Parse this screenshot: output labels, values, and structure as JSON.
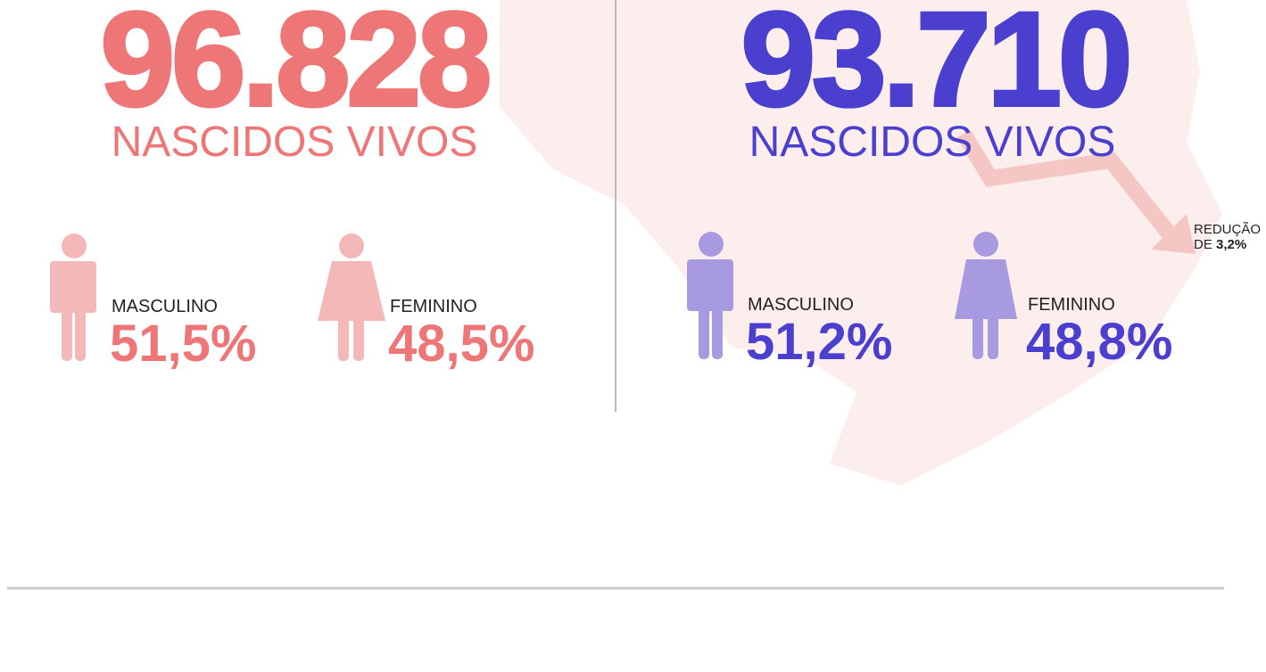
{
  "panels": [
    {
      "number": "96.828",
      "caption": "NASCIDOS VIVOS",
      "male": {
        "label": "MASCULINO",
        "value": "51,5%"
      },
      "female": {
        "label": "FEMININO",
        "value": "48,5%"
      }
    },
    {
      "number": "93.710",
      "caption": "NASCIDOS VIVOS",
      "male": {
        "label": "MASCULINO",
        "value": "51,2%"
      },
      "female": {
        "label": "FEMININO",
        "value": "48,8%"
      }
    }
  ],
  "annotation": {
    "line1": "REDUÇÃO",
    "prefix": "DE",
    "value": "3,2%"
  }
}
